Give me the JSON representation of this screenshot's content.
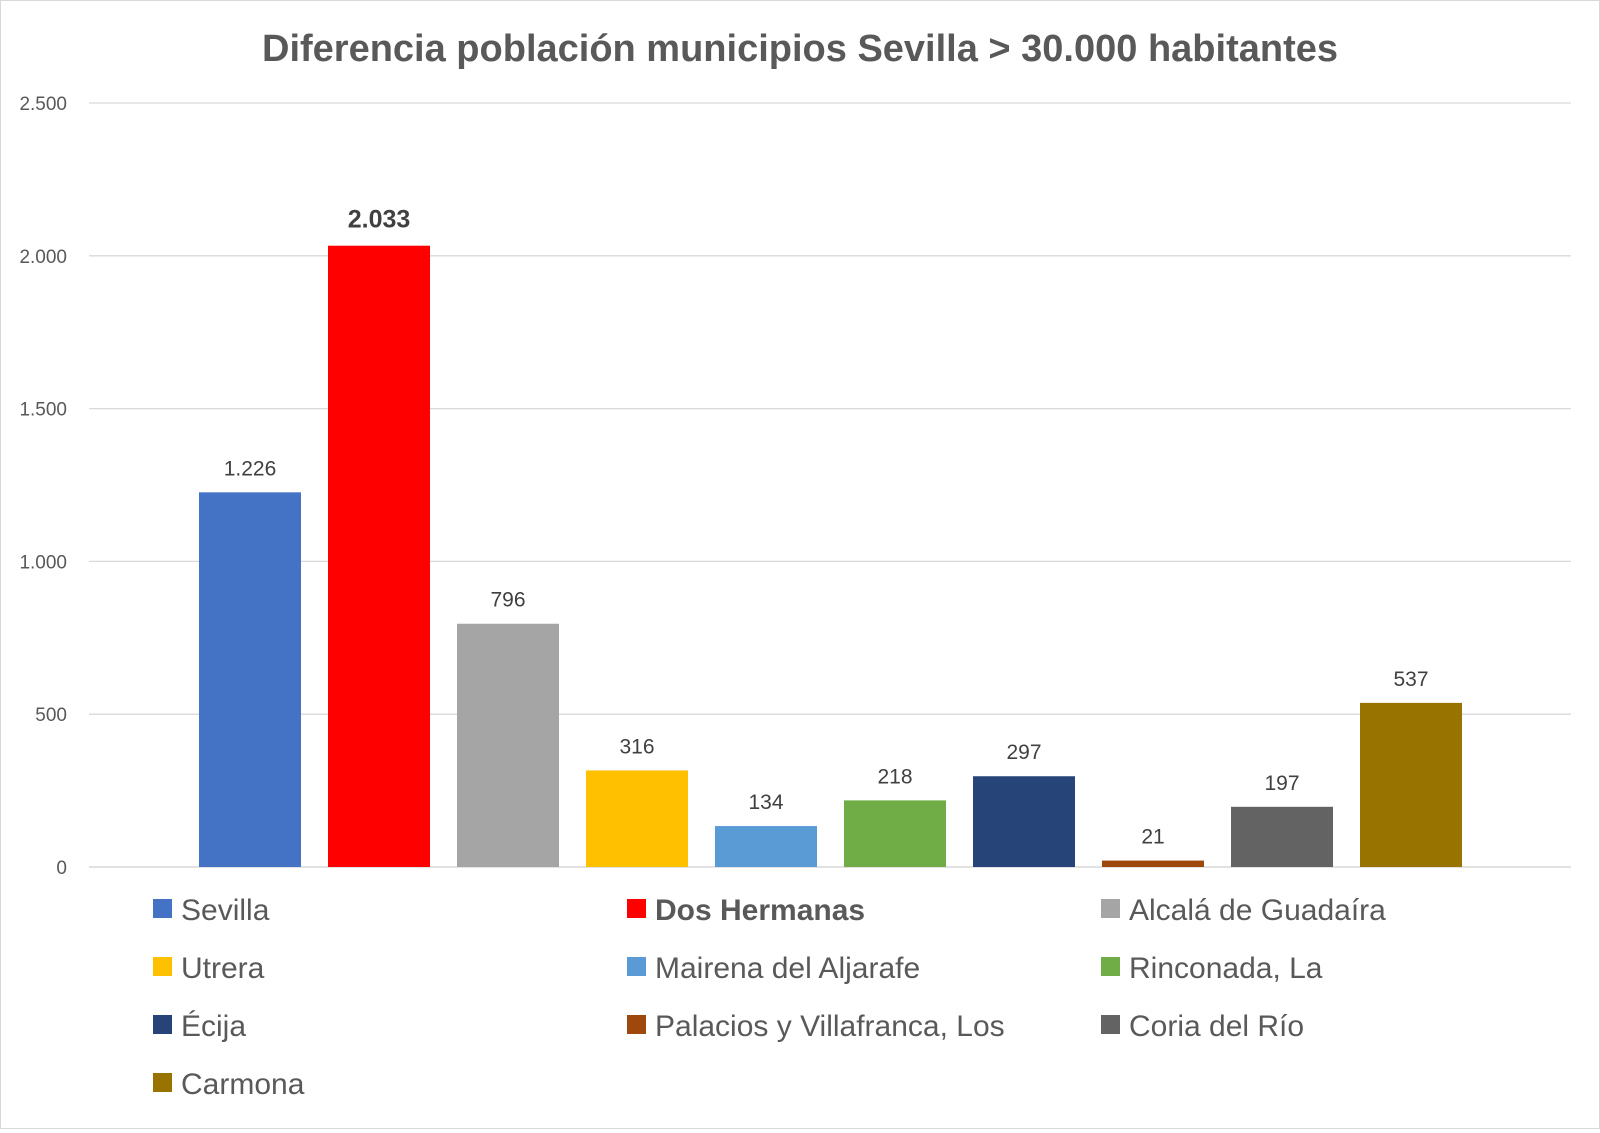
{
  "chart_data": {
    "type": "bar",
    "title": "Diferencia población municipios Sevilla > 30.000 habitantes",
    "xlabel": "",
    "ylabel": "",
    "ylim": [
      0,
      2500
    ],
    "yticks": [
      0,
      500,
      1000,
      1500,
      2000,
      2500
    ],
    "ytick_labels": [
      "0",
      "500",
      "1.000",
      "1.500",
      "2.000",
      "2.500"
    ],
    "grid": true,
    "legend_position": "bottom",
    "categories": [
      "Sevilla",
      "Dos Hermanas",
      "Alcalá de Guadaíra",
      "Utrera",
      "Mairena del Aljarafe",
      "Rinconada, La",
      "Écija",
      "Palacios y Villafranca, Los",
      "Coria del Río",
      "Carmona"
    ],
    "values": [
      1226,
      2033,
      796,
      316,
      134,
      218,
      297,
      21,
      197,
      537
    ],
    "value_labels": [
      "1.226",
      "2.033",
      "796",
      "316",
      "134",
      "218",
      "297",
      "21",
      "197",
      "537"
    ],
    "colors": [
      "#4472c4",
      "#ff0000",
      "#a5a5a5",
      "#ffc000",
      "#5b9bd5",
      "#70ad47",
      "#264478",
      "#9e480e",
      "#636363",
      "#997300"
    ],
    "highlight": "Dos Hermanas"
  }
}
